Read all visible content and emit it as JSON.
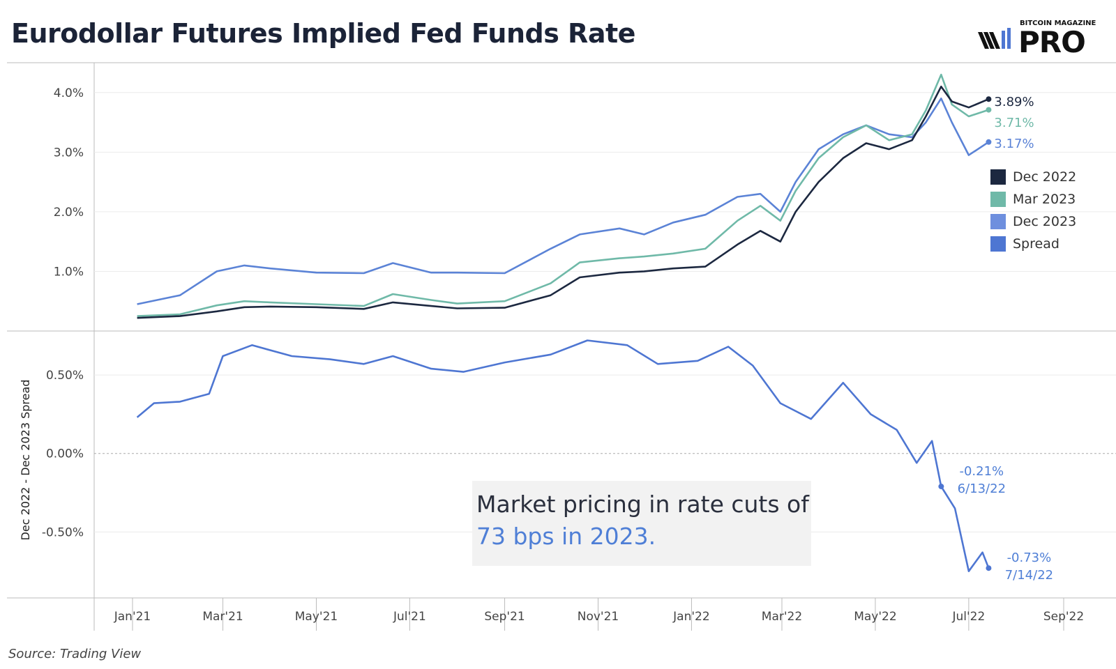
{
  "title": "Eurodollar Futures Implied Fed Funds Rate",
  "logo": {
    "top_text": "BITCOIN MAGAZINE",
    "main_text": "PRO"
  },
  "source": "Source: Trading View",
  "callout": {
    "line1": "Market pricing in rate cuts of",
    "line2": "73 bps in 2023."
  },
  "colors": {
    "dec2022": "#1c2840",
    "mar2023": "#6fb9a8",
    "dec2023": "#5b83d6",
    "spread": "#4e76d2",
    "grid": "#ececec",
    "axis": "#bbbbbb"
  },
  "legend": [
    {
      "label": "Dec 2022",
      "color": "#1c2840"
    },
    {
      "label": "Mar 2023",
      "color": "#6fb9a8"
    },
    {
      "label": "Dec 2023",
      "color": "#6e8fde"
    },
    {
      "label": "Spread",
      "color": "#4e76d2"
    }
  ],
  "chart_data": [
    {
      "type": "line",
      "title": "Eurodollar Futures Implied Fed Funds Rate",
      "ylabel": "",
      "ylim": [
        0.0,
        4.5
      ],
      "yticks": [
        "1.0%",
        "2.0%",
        "3.0%",
        "4.0%"
      ],
      "ytick_values": [
        1.0,
        2.0,
        3.0,
        4.0
      ],
      "x_ticks": [
        "Jan'21",
        "Mar'21",
        "May'21",
        "Jul'21",
        "Sep'21",
        "Nov'21",
        "Jan'22",
        "Mar'22",
        "May'22",
        "Jul'22",
        "Sep'22"
      ],
      "x_tick_dates": [
        "2021-01-01",
        "2021-03-01",
        "2021-05-01",
        "2021-07-01",
        "2021-09-01",
        "2021-11-01",
        "2022-01-01",
        "2022-03-01",
        "2022-05-01",
        "2022-07-01",
        "2022-09-01"
      ],
      "x": [
        "2021-01-04",
        "2021-02-01",
        "2021-02-25",
        "2021-03-15",
        "2021-04-01",
        "2021-05-01",
        "2021-06-01",
        "2021-06-20",
        "2021-07-15",
        "2021-08-01",
        "2021-09-01",
        "2021-10-01",
        "2021-10-20",
        "2021-11-15",
        "2021-12-01",
        "2021-12-20",
        "2022-01-10",
        "2022-01-31",
        "2022-02-15",
        "2022-02-28",
        "2022-03-10",
        "2022-03-25",
        "2022-04-10",
        "2022-04-25",
        "2022-05-10",
        "2022-05-25",
        "2022-06-03",
        "2022-06-13",
        "2022-06-20",
        "2022-07-01",
        "2022-07-14"
      ],
      "series": [
        {
          "name": "Dec 2022",
          "end_label": "3.89%",
          "values": [
            0.22,
            0.25,
            0.33,
            0.4,
            0.41,
            0.4,
            0.37,
            0.48,
            0.42,
            0.38,
            0.39,
            0.6,
            0.9,
            0.98,
            1.0,
            1.05,
            1.08,
            1.45,
            1.68,
            1.5,
            2.0,
            2.5,
            2.9,
            3.15,
            3.05,
            3.2,
            3.6,
            4.1,
            3.85,
            3.75,
            3.89
          ]
        },
        {
          "name": "Mar 2023",
          "end_label": "3.71%",
          "values": [
            0.25,
            0.28,
            0.43,
            0.5,
            0.48,
            0.45,
            0.42,
            0.62,
            0.52,
            0.46,
            0.5,
            0.8,
            1.15,
            1.22,
            1.25,
            1.3,
            1.38,
            1.85,
            2.1,
            1.85,
            2.35,
            2.9,
            3.25,
            3.45,
            3.2,
            3.3,
            3.7,
            4.3,
            3.8,
            3.6,
            3.71
          ]
        },
        {
          "name": "Dec 2023",
          "end_label": "3.17%",
          "values": [
            0.45,
            0.6,
            1.0,
            1.1,
            1.05,
            0.98,
            0.97,
            1.14,
            0.98,
            0.98,
            0.97,
            1.38,
            1.62,
            1.72,
            1.62,
            1.82,
            1.95,
            2.25,
            2.3,
            2.0,
            2.5,
            3.05,
            3.3,
            3.45,
            3.3,
            3.25,
            3.5,
            3.9,
            3.5,
            2.95,
            3.17
          ]
        }
      ]
    },
    {
      "type": "line",
      "ylabel": "Dec 2022 - Dec 2023 Spread",
      "ylim": [
        -0.92,
        0.78
      ],
      "yticks": [
        "-0.50%",
        "0.00%",
        "0.50%"
      ],
      "ytick_values": [
        -0.5,
        0.0,
        0.5
      ],
      "x": [
        "2021-01-04",
        "2021-01-15",
        "2021-02-01",
        "2021-02-20",
        "2021-03-01",
        "2021-03-20",
        "2021-04-15",
        "2021-05-10",
        "2021-06-01",
        "2021-06-20",
        "2021-07-15",
        "2021-08-05",
        "2021-09-01",
        "2021-10-01",
        "2021-10-25",
        "2021-11-20",
        "2021-12-10",
        "2022-01-05",
        "2022-01-25",
        "2022-02-10",
        "2022-02-28",
        "2022-03-20",
        "2022-04-10",
        "2022-04-28",
        "2022-05-15",
        "2022-05-28",
        "2022-06-07",
        "2022-06-13",
        "2022-06-22",
        "2022-07-01",
        "2022-07-10",
        "2022-07-14"
      ],
      "series": [
        {
          "name": "Spread",
          "values": [
            0.23,
            0.32,
            0.33,
            0.38,
            0.62,
            0.69,
            0.62,
            0.6,
            0.57,
            0.62,
            0.54,
            0.52,
            0.58,
            0.63,
            0.72,
            0.69,
            0.57,
            0.59,
            0.68,
            0.56,
            0.32,
            0.22,
            0.45,
            0.25,
            0.15,
            -0.06,
            0.08,
            -0.21,
            -0.35,
            -0.75,
            -0.63,
            -0.73
          ]
        }
      ],
      "reference_line": 0.0,
      "annotations": [
        {
          "value": "-0.21%",
          "date_label": "6/13/22"
        },
        {
          "value": "-0.73%",
          "date_label": "7/14/22"
        }
      ]
    }
  ]
}
